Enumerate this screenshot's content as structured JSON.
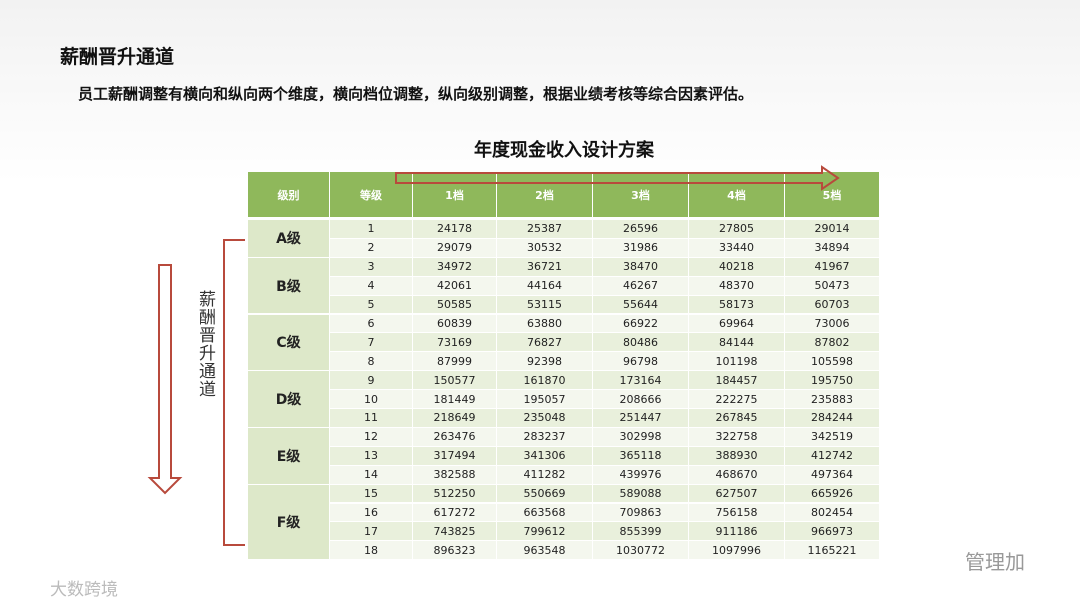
{
  "header": {
    "title": "薪酬晋升通道",
    "description": "员工薪酬调整有横向和纵向两个维度，横向档位调整，纵向级别调整，根据业绩考核等综合因素评估。"
  },
  "table": {
    "title": "年度现金收入设计方案",
    "headers": [
      "级别",
      "等级",
      "1档",
      "2档",
      "3档",
      "4档",
      "5档"
    ],
    "groups": [
      {
        "level": "A级",
        "rows": [
          [
            1,
            24178,
            25387,
            26596,
            27805,
            29014
          ],
          [
            2,
            29079,
            30532,
            31986,
            33440,
            34894
          ]
        ]
      },
      {
        "level": "B级",
        "rows": [
          [
            3,
            34972,
            36721,
            38470,
            40218,
            41967
          ],
          [
            4,
            42061,
            44164,
            46267,
            48370,
            50473
          ],
          [
            5,
            50585,
            53115,
            55644,
            58173,
            60703
          ]
        ]
      },
      {
        "level": "C级",
        "rows": [
          [
            6,
            60839,
            63880,
            66922,
            69964,
            73006
          ],
          [
            7,
            73169,
            76827,
            80486,
            84144,
            87802
          ],
          [
            8,
            87999,
            92398,
            96798,
            101198,
            105598
          ]
        ]
      },
      {
        "level": "D级",
        "rows": [
          [
            9,
            150577,
            161870,
            173164,
            184457,
            195750
          ],
          [
            10,
            181449,
            195057,
            208666,
            222275,
            235883
          ],
          [
            11,
            218649,
            235048,
            251447,
            267845,
            284244
          ]
        ]
      },
      {
        "level": "E级",
        "rows": [
          [
            12,
            263476,
            283237,
            302998,
            322758,
            342519
          ],
          [
            13,
            317494,
            341306,
            365118,
            388930,
            412742
          ],
          [
            14,
            382588,
            411282,
            439976,
            468670,
            497364
          ]
        ]
      },
      {
        "level": "F级",
        "rows": [
          [
            15,
            512250,
            550669,
            589088,
            627507,
            665926
          ],
          [
            16,
            617272,
            663568,
            709863,
            756158,
            802454
          ],
          [
            17,
            743825,
            799612,
            855399,
            911186,
            966973
          ],
          [
            18,
            896323,
            963548,
            1030772,
            1097996,
            1165221
          ]
        ]
      }
    ]
  },
  "side_label": "薪酬晋升通道",
  "watermarks": {
    "left": "大数跨境",
    "right": "管理加"
  }
}
